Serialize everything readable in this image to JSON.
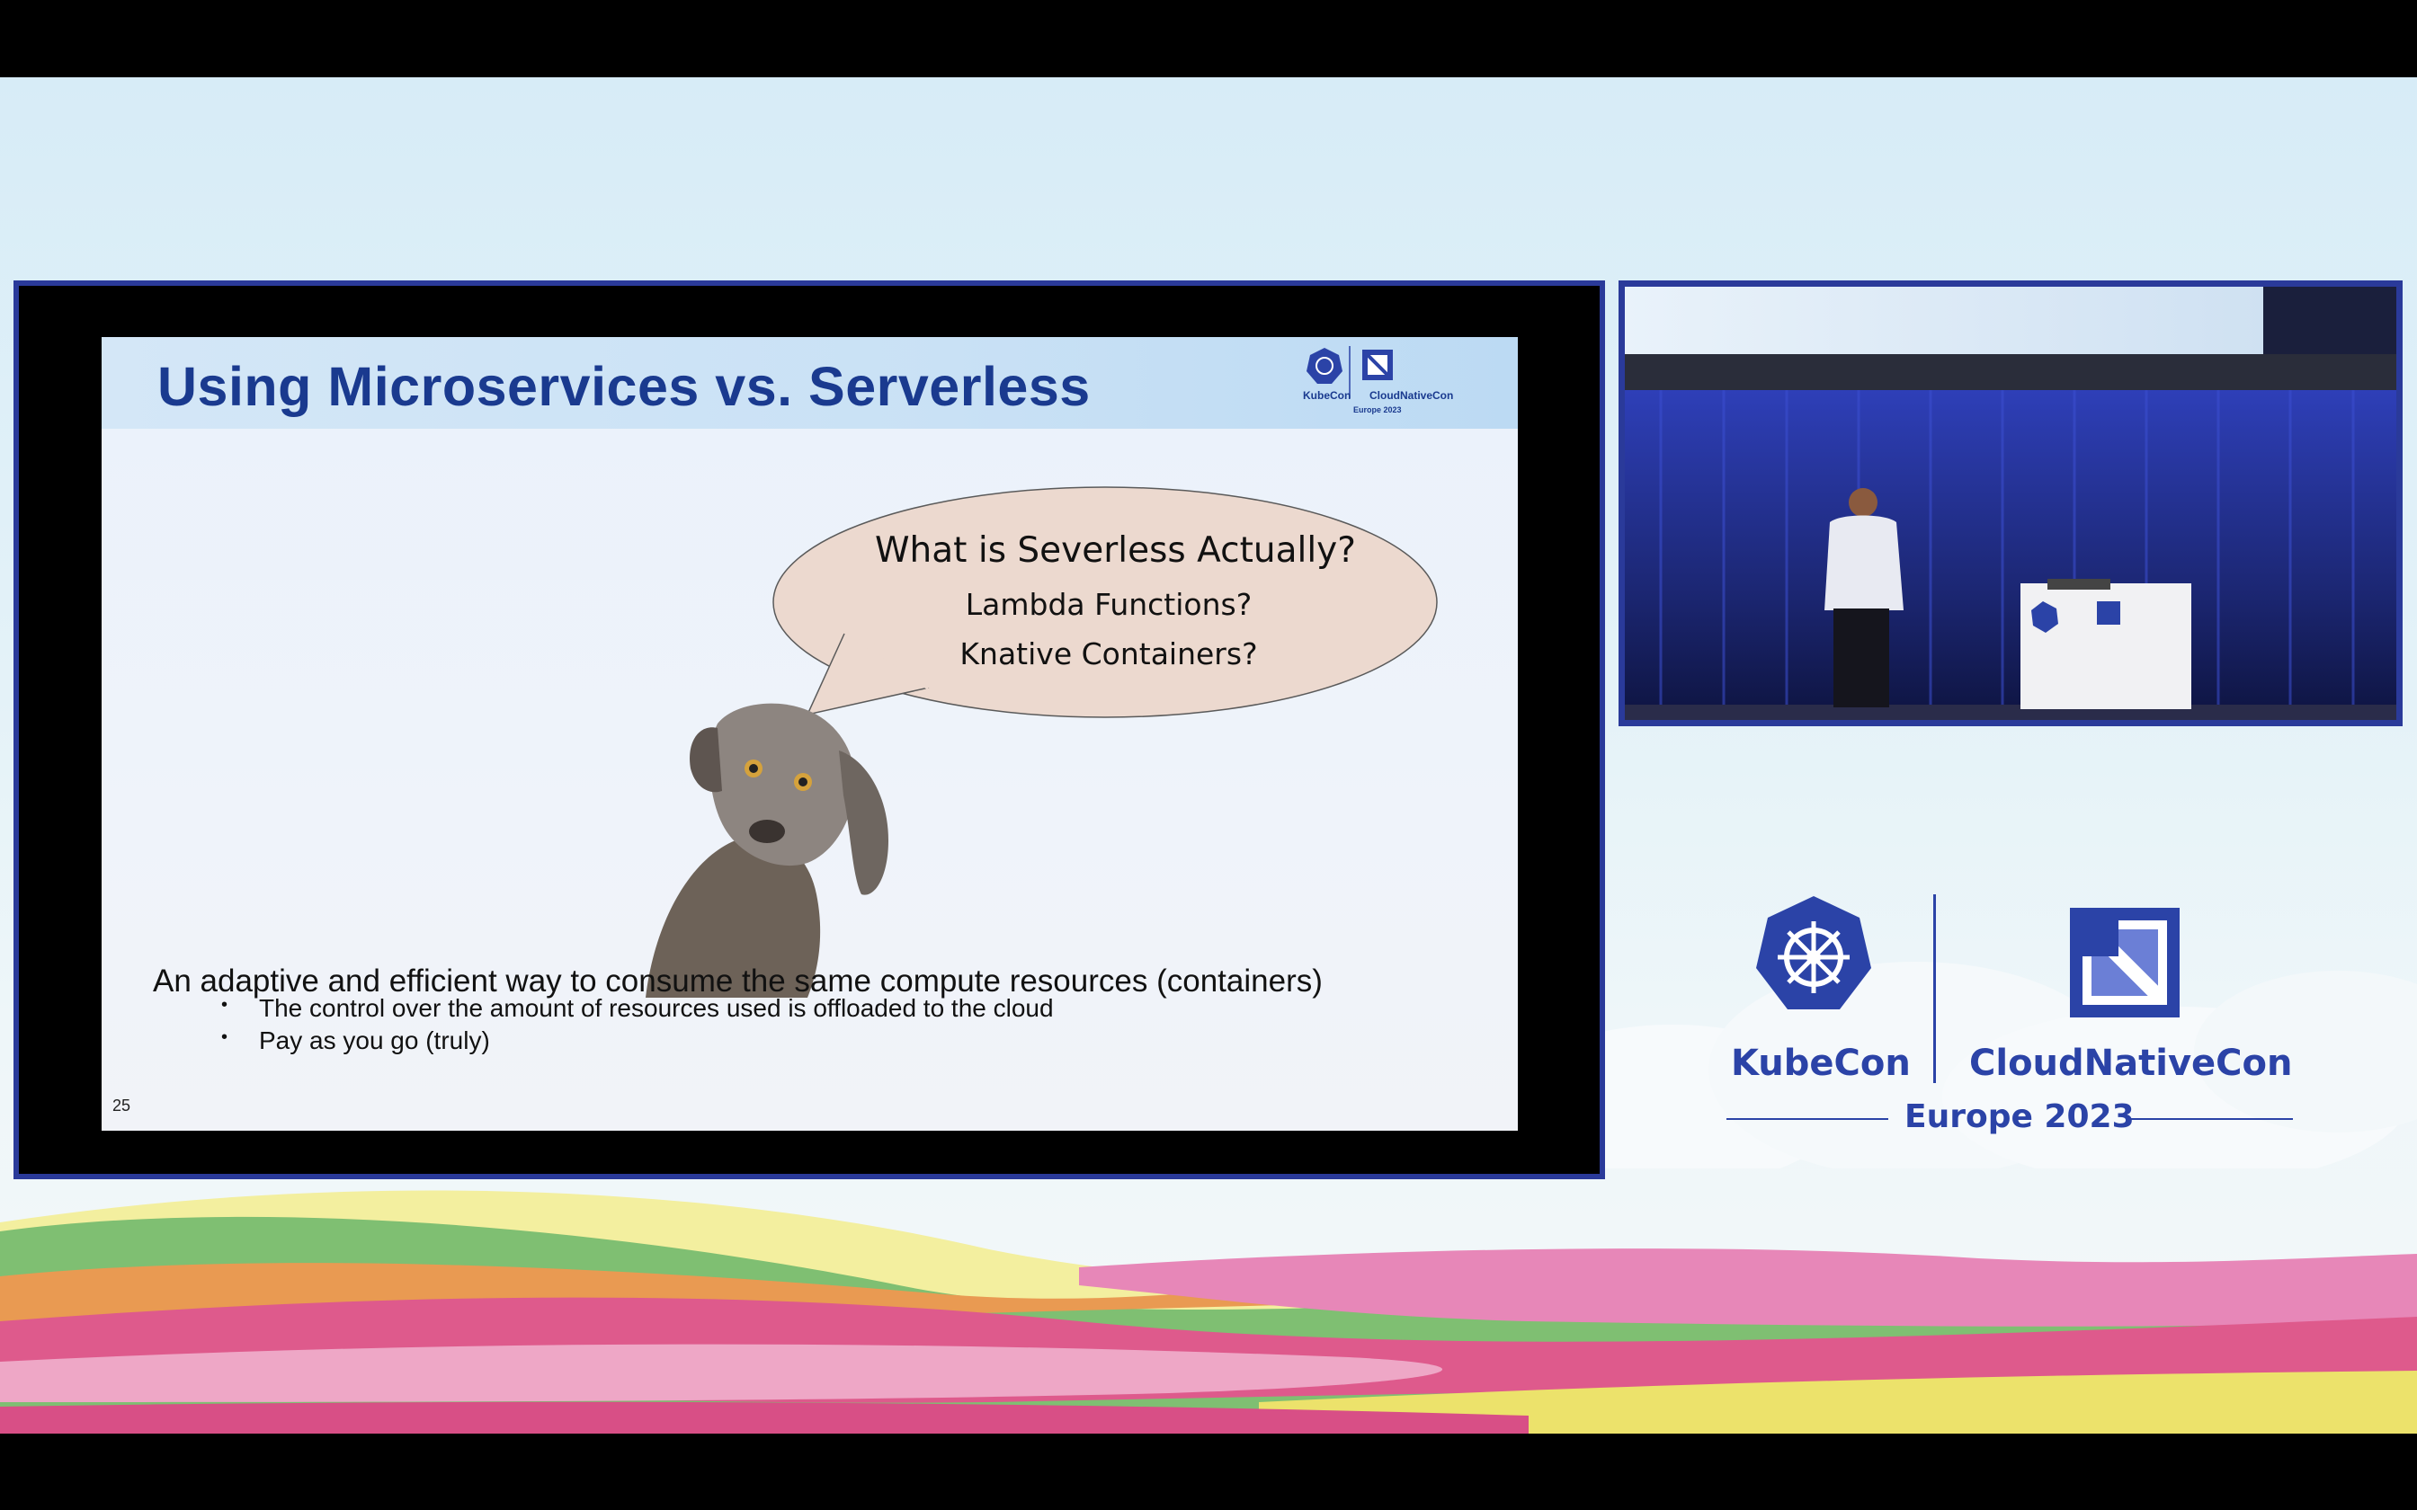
{
  "slide": {
    "title": "Using Microservices vs. Serverless",
    "header_logo": {
      "left": "KubeCon",
      "right": "CloudNativeCon",
      "sub": "Europe 2023"
    },
    "bubble": {
      "question": "What is Severless Actually?",
      "line1": "Lambda Functions?",
      "line2": "Knative Containers?"
    },
    "main_point": "An adaptive and efficient way to consume the same compute resources (containers)",
    "bullets": [
      "The control over the amount of resources used is offloaded to the cloud",
      "Pay as you go (truly)"
    ],
    "page_number": "25"
  },
  "event_logo": {
    "left": "KubeCon",
    "right": "CloudNativeCon",
    "sub": "Europe 2023"
  },
  "podium_logo": {
    "left": "KubeCon",
    "right": "CloudNativeCon"
  },
  "colors": {
    "brand_blue": "#2b43a7",
    "title_blue": "#1a3a8f",
    "frame_blue": "#2a3a9a",
    "bubble_fill": "#ecd9cf"
  }
}
